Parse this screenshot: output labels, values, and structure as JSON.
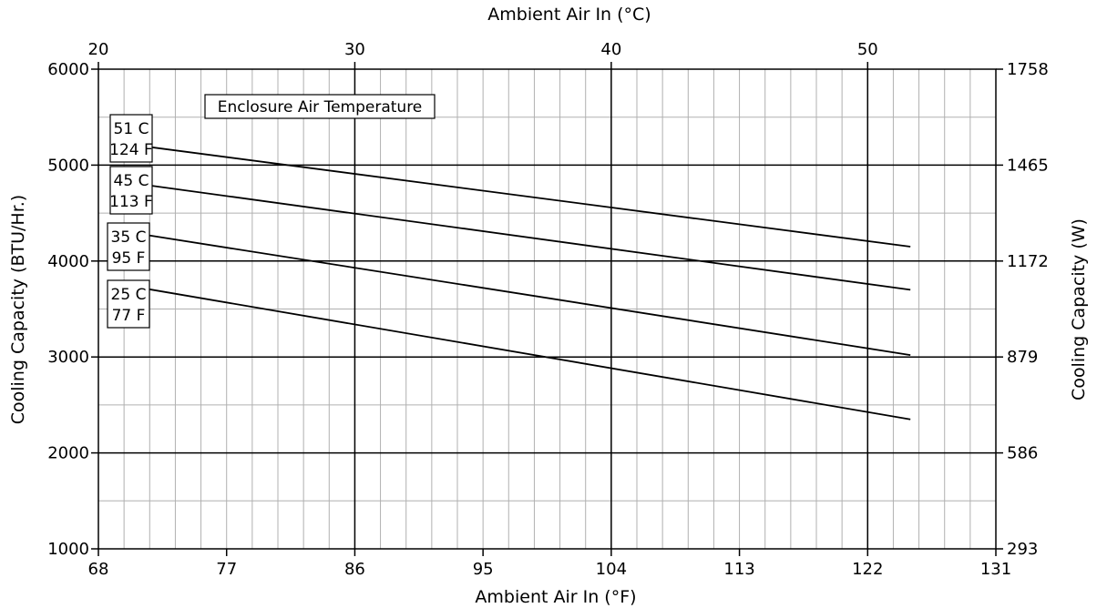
{
  "chart_data": {
    "type": "line",
    "x_bottom": {
      "label": "Ambient Air In (°F)",
      "range": [
        68,
        131
      ],
      "ticks": [
        "68",
        "77",
        "86",
        "95",
        "104",
        "113",
        "122",
        "131"
      ]
    },
    "x_top": {
      "label": "Ambient Air In (°C)",
      "ticks": [
        {
          "value": 20,
          "label": "20"
        },
        {
          "value": 30,
          "label": "30"
        },
        {
          "value": 40,
          "label": "40"
        },
        {
          "value": 50,
          "label": "50"
        }
      ]
    },
    "y_left": {
      "label": "Cooling Capacity (BTU/Hr.)",
      "range": [
        1000,
        6000
      ],
      "ticks": [
        "1000",
        "2000",
        "3000",
        "4000",
        "5000",
        "6000"
      ]
    },
    "y_right": {
      "label": "Cooling Capacity (W)",
      "ticks": [
        "293",
        "586",
        "879",
        "1172",
        "1465",
        "1758"
      ]
    },
    "annotation": "Enclosure Air Temperature",
    "grid": true,
    "series": [
      {
        "label_c": "51 C",
        "label_f": "124 F",
        "x": [
          71,
          125
        ],
        "y": [
          5200,
          4150
        ]
      },
      {
        "label_c": "45 C",
        "label_f": "113 F",
        "x": [
          71,
          125
        ],
        "y": [
          4800,
          3700
        ]
      },
      {
        "label_c": "35 C",
        "label_f": "95 F",
        "x": [
          71,
          125
        ],
        "y": [
          4280,
          3020
        ]
      },
      {
        "label_c": "25 C",
        "label_f": "77 F",
        "x": [
          71,
          125
        ],
        "y": [
          3720,
          2350
        ]
      }
    ]
  }
}
